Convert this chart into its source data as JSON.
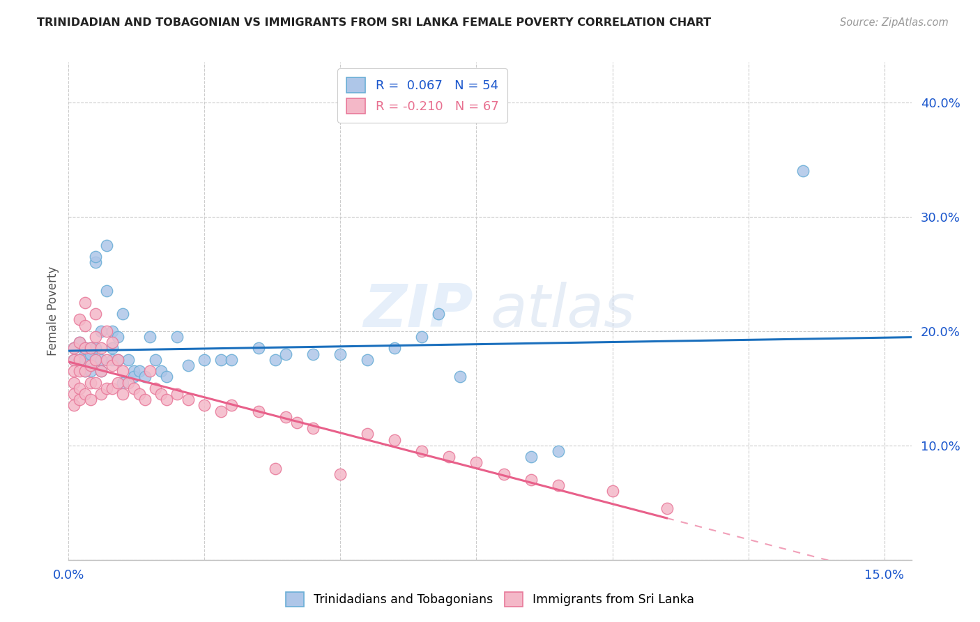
{
  "title": "TRINIDADIAN AND TOBAGONIAN VS IMMIGRANTS FROM SRI LANKA FEMALE POVERTY CORRELATION CHART",
  "source": "Source: ZipAtlas.com",
  "ylabel": "Female Poverty",
  "right_yticks": [
    "40.0%",
    "30.0%",
    "20.0%",
    "10.0%"
  ],
  "right_ytick_vals": [
    0.4,
    0.3,
    0.2,
    0.1
  ],
  "xlim": [
    0.0,
    0.155
  ],
  "ylim": [
    0.0,
    0.435
  ],
  "watermark": "ZIPatlas",
  "series1_color": "#6aaed6",
  "series1_face": "#aec6e8",
  "series2_color": "#e8799a",
  "series2_face": "#f4b8c8",
  "trend1_color": "#1a6fbd",
  "trend2_color": "#e8608a",
  "bottom_legend_label1": "Trinidadians and Tobagonians",
  "bottom_legend_label2": "Immigrants from Sri Lanka",
  "legend_r1": "0.067",
  "legend_n1": "54",
  "legend_r2": "-0.210",
  "legend_n2": "67",
  "series1_x": [
    0.001,
    0.001,
    0.002,
    0.002,
    0.003,
    0.003,
    0.003,
    0.003,
    0.004,
    0.004,
    0.004,
    0.005,
    0.005,
    0.005,
    0.005,
    0.006,
    0.006,
    0.006,
    0.007,
    0.007,
    0.008,
    0.008,
    0.008,
    0.009,
    0.009,
    0.01,
    0.01,
    0.011,
    0.012,
    0.012,
    0.013,
    0.014,
    0.015,
    0.016,
    0.017,
    0.018,
    0.02,
    0.022,
    0.025,
    0.028,
    0.03,
    0.035,
    0.038,
    0.04,
    0.045,
    0.05,
    0.055,
    0.06,
    0.065,
    0.068,
    0.072,
    0.085,
    0.09,
    0.135
  ],
  "series1_y": [
    0.175,
    0.185,
    0.19,
    0.175,
    0.18,
    0.185,
    0.165,
    0.175,
    0.18,
    0.185,
    0.165,
    0.26,
    0.265,
    0.175,
    0.185,
    0.2,
    0.175,
    0.165,
    0.275,
    0.235,
    0.185,
    0.175,
    0.2,
    0.195,
    0.175,
    0.215,
    0.155,
    0.175,
    0.165,
    0.16,
    0.165,
    0.16,
    0.195,
    0.175,
    0.165,
    0.16,
    0.195,
    0.17,
    0.175,
    0.175,
    0.175,
    0.185,
    0.175,
    0.18,
    0.18,
    0.18,
    0.175,
    0.185,
    0.195,
    0.215,
    0.16,
    0.09,
    0.095,
    0.34
  ],
  "series2_x": [
    0.001,
    0.001,
    0.001,
    0.001,
    0.001,
    0.001,
    0.002,
    0.002,
    0.002,
    0.002,
    0.002,
    0.002,
    0.003,
    0.003,
    0.003,
    0.003,
    0.003,
    0.004,
    0.004,
    0.004,
    0.004,
    0.005,
    0.005,
    0.005,
    0.005,
    0.006,
    0.006,
    0.006,
    0.007,
    0.007,
    0.007,
    0.008,
    0.008,
    0.008,
    0.009,
    0.009,
    0.01,
    0.01,
    0.011,
    0.012,
    0.013,
    0.014,
    0.015,
    0.016,
    0.017,
    0.018,
    0.02,
    0.022,
    0.025,
    0.028,
    0.03,
    0.035,
    0.038,
    0.04,
    0.042,
    0.045,
    0.05,
    0.055,
    0.06,
    0.065,
    0.07,
    0.075,
    0.08,
    0.085,
    0.09,
    0.1,
    0.11
  ],
  "series2_y": [
    0.185,
    0.175,
    0.165,
    0.155,
    0.145,
    0.135,
    0.21,
    0.19,
    0.175,
    0.165,
    0.15,
    0.14,
    0.225,
    0.205,
    0.185,
    0.165,
    0.145,
    0.185,
    0.17,
    0.155,
    0.14,
    0.215,
    0.195,
    0.175,
    0.155,
    0.185,
    0.165,
    0.145,
    0.2,
    0.175,
    0.15,
    0.19,
    0.17,
    0.15,
    0.175,
    0.155,
    0.165,
    0.145,
    0.155,
    0.15,
    0.145,
    0.14,
    0.165,
    0.15,
    0.145,
    0.14,
    0.145,
    0.14,
    0.135,
    0.13,
    0.135,
    0.13,
    0.08,
    0.125,
    0.12,
    0.115,
    0.075,
    0.11,
    0.105,
    0.095,
    0.09,
    0.085,
    0.075,
    0.07,
    0.065,
    0.06,
    0.045
  ]
}
